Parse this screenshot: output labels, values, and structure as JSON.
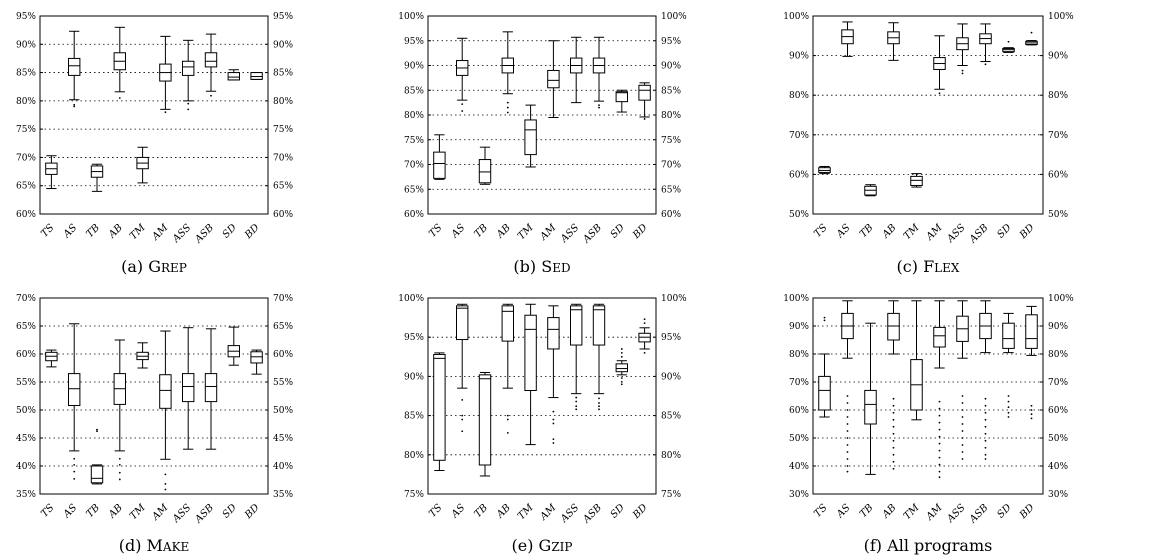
{
  "chart_data": [
    {
      "type": "box",
      "caption_label": "(a)",
      "caption_name": "Grep",
      "ylim": [
        60,
        95
      ],
      "yticks": [
        "60%",
        "65%",
        "70%",
        "75%",
        "80%",
        "85%",
        "90%",
        "95%"
      ],
      "categories": [
        "TS",
        "AS",
        "TB",
        "AB",
        "TM",
        "AM",
        "ASS",
        "ASB",
        "SD",
        "BD"
      ],
      "boxes": [
        {
          "min": 64.5,
          "q1": 67.0,
          "median": 68.0,
          "q3": 69.0,
          "max": 70.3,
          "outliers": []
        },
        {
          "min": 80.2,
          "q1": 84.5,
          "median": 86.2,
          "q3": 87.5,
          "max": 92.3,
          "outliers": [
            79.3,
            79.0
          ]
        },
        {
          "min": 64.0,
          "q1": 66.5,
          "median": 67.5,
          "q3": 68.5,
          "max": 68.8,
          "outliers": []
        },
        {
          "min": 81.6,
          "q1": 85.5,
          "median": 87.0,
          "q3": 88.5,
          "max": 93.0,
          "outliers": [
            80.5
          ]
        },
        {
          "min": 65.5,
          "q1": 68.0,
          "median": 69.0,
          "q3": 70.0,
          "max": 71.8,
          "outliers": []
        },
        {
          "min": 78.5,
          "q1": 83.5,
          "median": 85.0,
          "q3": 86.5,
          "max": 91.4,
          "outliers": [
            78.0
          ]
        },
        {
          "min": 80.0,
          "q1": 84.5,
          "median": 86.0,
          "q3": 87.0,
          "max": 90.7,
          "outliers": [
            79.5,
            78.5
          ]
        },
        {
          "min": 81.7,
          "q1": 86.0,
          "median": 87.0,
          "q3": 88.5,
          "max": 91.8,
          "outliers": [
            80.9
          ]
        },
        {
          "min": 83.7,
          "q1": 83.7,
          "median": 84.2,
          "q3": 85.0,
          "max": 85.5,
          "outliers": []
        },
        {
          "min": 83.8,
          "q1": 83.8,
          "median": 84.3,
          "q3": 85.0,
          "max": 85.0,
          "outliers": []
        }
      ]
    },
    {
      "type": "box",
      "caption_label": "(b)",
      "caption_name": "Sed",
      "ylim": [
        60,
        100
      ],
      "yticks": [
        "60%",
        "65%",
        "70%",
        "75%",
        "80%",
        "85%",
        "90%",
        "95%",
        "100%"
      ],
      "categories": [
        "TS",
        "AS",
        "TB",
        "AB",
        "TM",
        "AM",
        "ASS",
        "ASB",
        "SD",
        "BD"
      ],
      "boxes": [
        {
          "min": 67.0,
          "q1": 67.2,
          "median": 70.2,
          "q3": 72.5,
          "max": 76.0,
          "outliers": []
        },
        {
          "min": 83.0,
          "q1": 88.0,
          "median": 89.5,
          "q3": 91.0,
          "max": 95.5,
          "outliers": [
            82.2,
            80.8
          ]
        },
        {
          "min": 66.0,
          "q1": 66.3,
          "median": 68.5,
          "q3": 71.0,
          "max": 73.5,
          "outliers": []
        },
        {
          "min": 84.3,
          "q1": 88.5,
          "median": 90.0,
          "q3": 91.5,
          "max": 96.8,
          "outliers": [
            82.5,
            81.5,
            80.5
          ]
        },
        {
          "min": 69.5,
          "q1": 72.0,
          "median": 77.0,
          "q3": 79.0,
          "max": 82.0,
          "outliers": []
        },
        {
          "min": 79.5,
          "q1": 85.5,
          "median": 87.0,
          "q3": 89.0,
          "max": 95.0,
          "outliers": []
        },
        {
          "min": 82.5,
          "q1": 88.5,
          "median": 90.0,
          "q3": 91.5,
          "max": 95.7,
          "outliers": []
        },
        {
          "min": 82.8,
          "q1": 88.5,
          "median": 90.0,
          "q3": 91.5,
          "max": 95.7,
          "outliers": [
            82.0,
            81.5
          ]
        },
        {
          "min": 80.6,
          "q1": 82.7,
          "median": 84.5,
          "q3": 84.7,
          "max": 85.0,
          "outliers": []
        },
        {
          "min": 79.6,
          "q1": 83.0,
          "median": 85.0,
          "q3": 86.0,
          "max": 86.5,
          "outliers": [
            79.2
          ]
        }
      ]
    },
    {
      "type": "box",
      "caption_label": "(c)",
      "caption_name": "Flex",
      "ylim": [
        50,
        100
      ],
      "yticks": [
        "50%",
        "60%",
        "70%",
        "80%",
        "90%",
        "100%"
      ],
      "categories": [
        "TS",
        "AS",
        "TB",
        "AB",
        "TM",
        "AM",
        "ASS",
        "ASB",
        "SD",
        "BD"
      ],
      "boxes": [
        {
          "min": 60.2,
          "q1": 60.5,
          "median": 61.0,
          "q3": 61.7,
          "max": 62.0,
          "outliers": []
        },
        {
          "min": 89.8,
          "q1": 93.0,
          "median": 94.8,
          "q3": 96.5,
          "max": 98.5,
          "outliers": []
        },
        {
          "min": 54.6,
          "q1": 54.8,
          "median": 56.0,
          "q3": 57.0,
          "max": 57.4,
          "outliers": []
        },
        {
          "min": 88.8,
          "q1": 93.0,
          "median": 94.5,
          "q3": 96.0,
          "max": 98.3,
          "outliers": []
        },
        {
          "min": 56.8,
          "q1": 57.2,
          "median": 58.5,
          "q3": 59.5,
          "max": 60.2,
          "outliers": []
        },
        {
          "min": 81.5,
          "q1": 86.5,
          "median": 88.0,
          "q3": 89.5,
          "max": 95.0,
          "outliers": [
            80.5
          ]
        },
        {
          "min": 87.5,
          "q1": 91.5,
          "median": 93.0,
          "q3": 94.5,
          "max": 98.0,
          "outliers": [
            86.2,
            85.5
          ]
        },
        {
          "min": 88.5,
          "q1": 93.0,
          "median": 94.3,
          "q3": 95.5,
          "max": 98.0,
          "outliers": [
            87.8
          ]
        },
        {
          "min": 90.8,
          "q1": 91.0,
          "median": 91.5,
          "q3": 91.8,
          "max": 92.0,
          "outliers": [
            93.5
          ]
        },
        {
          "min": 92.7,
          "q1": 92.8,
          "median": 93.2,
          "q3": 93.6,
          "max": 93.8,
          "outliers": [
            95.8
          ]
        }
      ]
    },
    {
      "type": "box",
      "caption_label": "(d)",
      "caption_name": "Make",
      "ylim": [
        35,
        70
      ],
      "yticks": [
        "35%",
        "40%",
        "45%",
        "50%",
        "55%",
        "60%",
        "65%",
        "70%"
      ],
      "categories": [
        "TS",
        "AS",
        "TB",
        "AB",
        "TM",
        "AM",
        "ASS",
        "ASB",
        "SD",
        "BD"
      ],
      "boxes": [
        {
          "min": 57.7,
          "q1": 58.8,
          "median": 59.6,
          "q3": 60.3,
          "max": 60.7,
          "outliers": []
        },
        {
          "min": 42.7,
          "q1": 50.8,
          "median": 53.8,
          "q3": 56.5,
          "max": 65.4,
          "outliers": [
            41.3,
            40.2,
            39.0,
            37.7
          ]
        },
        {
          "min": 36.8,
          "q1": 37.0,
          "median": 37.8,
          "q3": 40.0,
          "max": 40.2,
          "outliers": [
            46.5,
            46.2
          ]
        },
        {
          "min": 42.7,
          "q1": 51.0,
          "median": 53.8,
          "q3": 56.5,
          "max": 62.5,
          "outliers": [
            41.3,
            40.2,
            38.8,
            37.6
          ]
        },
        {
          "min": 57.5,
          "q1": 59.0,
          "median": 59.6,
          "q3": 60.3,
          "max": 62.0,
          "outliers": []
        },
        {
          "min": 41.2,
          "q1": 50.3,
          "median": 53.5,
          "q3": 56.3,
          "max": 64.1,
          "outliers": [
            38.5,
            36.8,
            35.8
          ]
        },
        {
          "min": 43.0,
          "q1": 51.5,
          "median": 54.2,
          "q3": 56.5,
          "max": 64.7,
          "outliers": []
        },
        {
          "min": 43.0,
          "q1": 51.5,
          "median": 54.2,
          "q3": 56.5,
          "max": 64.5,
          "outliers": []
        },
        {
          "min": 58.0,
          "q1": 59.5,
          "median": 60.5,
          "q3": 61.5,
          "max": 64.8,
          "outliers": []
        },
        {
          "min": 56.4,
          "q1": 58.4,
          "median": 59.5,
          "q3": 60.4,
          "max": 60.7,
          "outliers": []
        }
      ]
    },
    {
      "type": "box",
      "caption_label": "(e)",
      "caption_name": "Gzip",
      "ylim": [
        75,
        100
      ],
      "yticks": [
        "75%",
        "80%",
        "85%",
        "90%",
        "95%",
        "100%"
      ],
      "categories": [
        "TS",
        "AS",
        "TB",
        "AB",
        "TM",
        "AM",
        "ASS",
        "ASB",
        "SD",
        "BD"
      ],
      "boxes": [
        {
          "min": 78.0,
          "q1": 79.3,
          "median": 92.3,
          "q3": 92.8,
          "max": 93.0,
          "outliers": []
        },
        {
          "min": 88.5,
          "q1": 94.7,
          "median": 98.7,
          "q3": 99.0,
          "max": 99.2,
          "outliers": [
            87.0,
            85.0,
            84.5,
            83.0
          ]
        },
        {
          "min": 77.3,
          "q1": 78.7,
          "median": 89.7,
          "q3": 90.2,
          "max": 90.5,
          "outliers": []
        },
        {
          "min": 88.5,
          "q1": 94.5,
          "median": 98.3,
          "q3": 99.0,
          "max": 99.2,
          "outliers": [
            85.0,
            84.5,
            82.8
          ]
        },
        {
          "min": 81.3,
          "q1": 88.2,
          "median": 96.0,
          "q3": 97.8,
          "max": 99.2,
          "outliers": []
        },
        {
          "min": 87.3,
          "q1": 93.5,
          "median": 96.0,
          "q3": 97.5,
          "max": 99.0,
          "outliers": [
            85.5,
            84.5,
            84.0,
            82.0,
            81.5
          ]
        },
        {
          "min": 87.8,
          "q1": 94.0,
          "median": 98.5,
          "q3": 99.0,
          "max": 99.2,
          "outliers": [
            87.3,
            86.8,
            86.2,
            85.8
          ]
        },
        {
          "min": 87.8,
          "q1": 94.0,
          "median": 98.5,
          "q3": 99.0,
          "max": 99.2,
          "outliers": [
            87.2,
            86.6,
            86.2,
            85.8
          ]
        },
        {
          "min": 90.2,
          "q1": 90.6,
          "median": 91.0,
          "q3": 91.6,
          "max": 92.0,
          "outliers": [
            93.5,
            93.0,
            92.5,
            89.8,
            89.3,
            89.0
          ]
        },
        {
          "min": 93.5,
          "q1": 94.4,
          "median": 95.0,
          "q3": 95.5,
          "max": 96.2,
          "outliers": [
            97.3,
            96.8,
            93.0
          ]
        }
      ]
    },
    {
      "type": "box",
      "caption_label": "(f)",
      "caption_name": "All programs",
      "ylim": [
        30,
        100
      ],
      "yticks": [
        "30%",
        "40%",
        "50%",
        "60%",
        "70%",
        "80%",
        "90%",
        "100%"
      ],
      "categories": [
        "TS",
        "AS",
        "TB",
        "AB",
        "TM",
        "AM",
        "ASS",
        "ASB",
        "SD",
        "BD"
      ],
      "boxes": [
        {
          "min": 57.5,
          "q1": 60.0,
          "median": 67.0,
          "q3": 72.0,
          "max": 80.0,
          "outliers": [
            93.0,
            92.0
          ]
        },
        {
          "min": 78.5,
          "q1": 85.5,
          "median": 90.0,
          "q3": 94.5,
          "max": 99.0,
          "outliers": [
            65.0,
            62.5,
            60.0,
            57.5,
            55.0,
            52.5,
            50.0,
            47.5,
            45.0,
            42.5,
            40.0,
            38.0
          ]
        },
        {
          "min": 37.0,
          "q1": 55.0,
          "median": 62.0,
          "q3": 67.0,
          "max": 91.0,
          "outliers": []
        },
        {
          "min": 80.0,
          "q1": 85.0,
          "median": 90.0,
          "q3": 94.5,
          "max": 99.0,
          "outliers": [
            64.0,
            61.5,
            59.0,
            56.5,
            54.0,
            51.5,
            49.0,
            46.5,
            44.0,
            41.5,
            39.0
          ]
        },
        {
          "min": 56.5,
          "q1": 60.0,
          "median": 69.0,
          "q3": 78.0,
          "max": 99.0,
          "outliers": []
        },
        {
          "min": 75.0,
          "q1": 82.5,
          "median": 86.5,
          "q3": 89.5,
          "max": 99.0,
          "outliers": [
            63.0,
            60.5,
            58.0,
            55.5,
            53.0,
            50.5,
            48.0,
            45.5,
            43.0,
            40.5,
            38.0,
            36.0
          ]
        },
        {
          "min": 78.5,
          "q1": 84.5,
          "median": 89.0,
          "q3": 93.5,
          "max": 99.0,
          "outliers": [
            65.0,
            62.5,
            60.0,
            57.5,
            55.0,
            52.5,
            50.0,
            47.5,
            45.0,
            42.5
          ]
        },
        {
          "min": 80.5,
          "q1": 85.5,
          "median": 90.0,
          "q3": 94.5,
          "max": 99.0,
          "outliers": [
            64.0,
            61.5,
            59.0,
            56.5,
            54.0,
            51.5,
            49.0,
            46.5,
            44.0,
            42.5
          ]
        },
        {
          "min": 80.5,
          "q1": 82.0,
          "median": 85.5,
          "q3": 91.0,
          "max": 94.5,
          "outliers": [
            65.0,
            63.0,
            61.0,
            59.0,
            57.5
          ]
        },
        {
          "min": 79.5,
          "q1": 82.0,
          "median": 85.5,
          "q3": 94.0,
          "max": 97.0,
          "outliers": [
            61.5,
            60.0,
            58.5,
            57.0
          ]
        }
      ]
    }
  ]
}
